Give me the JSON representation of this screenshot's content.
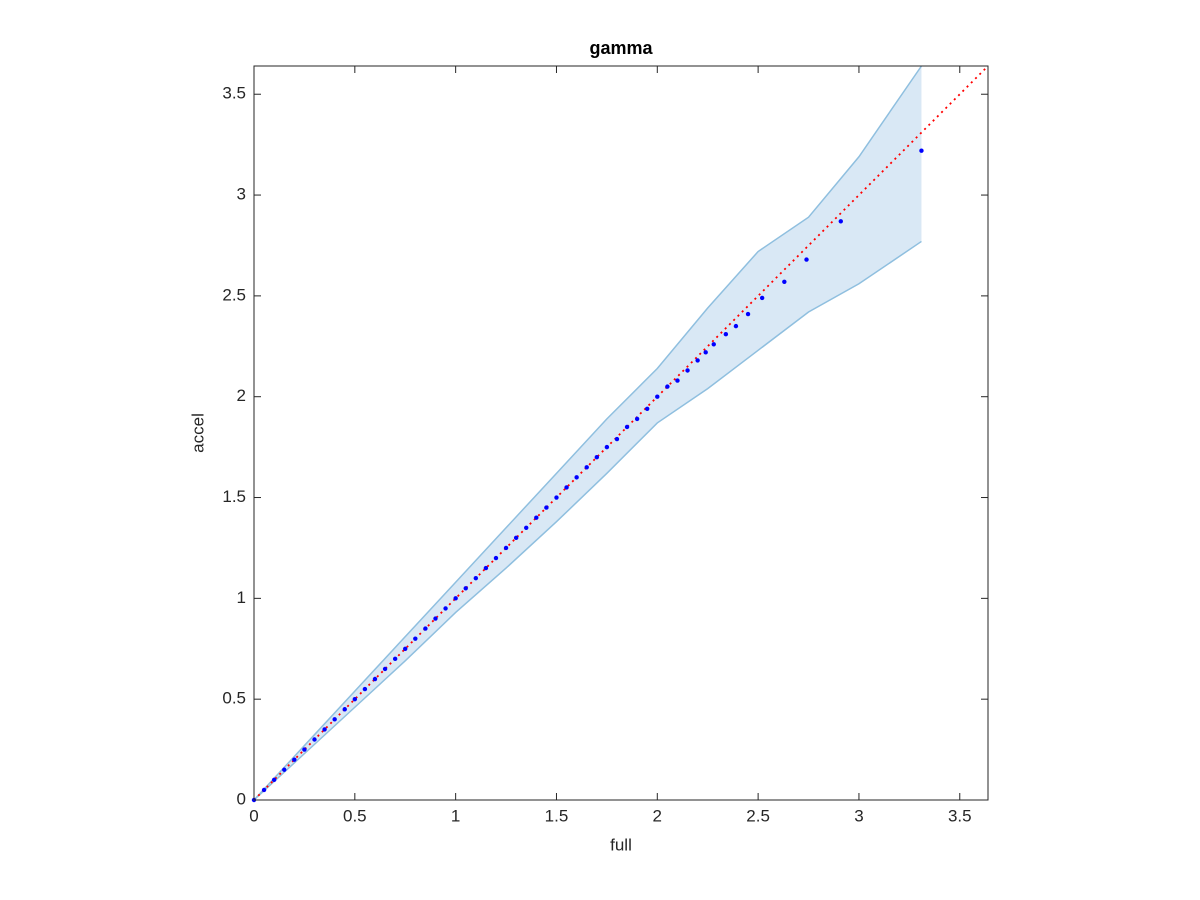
{
  "chart_data": {
    "type": "scatter",
    "title": "gamma",
    "xlabel": "full",
    "ylabel": "accel",
    "xlim": [
      0,
      3.64
    ],
    "ylim": [
      0,
      3.64
    ],
    "xticks": [
      0,
      0.5,
      1,
      1.5,
      2,
      2.5,
      3,
      3.5
    ],
    "yticks": [
      0,
      0.5,
      1,
      1.5,
      2,
      2.5,
      3,
      3.5
    ],
    "grid": false,
    "band": {
      "color": "#d9e8f5",
      "edge_color": "#8fbfdf",
      "x": [
        0,
        0.25,
        0.5,
        0.75,
        1,
        1.25,
        1.5,
        1.75,
        2,
        2.25,
        2.5,
        2.75,
        3,
        3.31
      ],
      "upper": [
        0,
        0.27,
        0.54,
        0.81,
        1.08,
        1.35,
        1.62,
        1.89,
        2.14,
        2.44,
        2.72,
        2.89,
        3.19,
        3.64
      ],
      "lower": [
        0,
        0.23,
        0.46,
        0.69,
        0.93,
        1.15,
        1.38,
        1.62,
        1.87,
        2.04,
        2.23,
        2.42,
        2.56,
        2.77
      ]
    },
    "reference_line": {
      "color": "#ff0000",
      "x": [
        0,
        3.64
      ],
      "y": [
        0,
        3.64
      ]
    },
    "series": [
      {
        "color": "#0000ff",
        "x": [
          0,
          0.05,
          0.1,
          0.15,
          0.2,
          0.25,
          0.3,
          0.35,
          0.4,
          0.45,
          0.5,
          0.55,
          0.6,
          0.65,
          0.7,
          0.75,
          0.8,
          0.85,
          0.9,
          0.95,
          1,
          1.05,
          1.1,
          1.15,
          1.2,
          1.25,
          1.3,
          1.35,
          1.4,
          1.45,
          1.5,
          1.55,
          1.6,
          1.65,
          1.7,
          1.75,
          1.8,
          1.85,
          1.9,
          1.95,
          2,
          2.05,
          2.1,
          2.15,
          2.2,
          2.24,
          2.28,
          2.34,
          2.39,
          2.45,
          2.52,
          2.63,
          2.74,
          2.91,
          3.31
        ],
        "y": [
          0,
          0.05,
          0.1,
          0.15,
          0.2,
          0.25,
          0.3,
          0.35,
          0.4,
          0.45,
          0.5,
          0.55,
          0.6,
          0.65,
          0.7,
          0.75,
          0.8,
          0.85,
          0.9,
          0.95,
          1,
          1.05,
          1.1,
          1.15,
          1.2,
          1.25,
          1.3,
          1.35,
          1.4,
          1.45,
          1.5,
          1.55,
          1.6,
          1.65,
          1.7,
          1.75,
          1.79,
          1.85,
          1.89,
          1.94,
          2,
          2.05,
          2.08,
          2.13,
          2.18,
          2.22,
          2.26,
          2.31,
          2.35,
          2.41,
          2.49,
          2.57,
          2.68,
          2.87,
          3.22
        ]
      }
    ]
  }
}
